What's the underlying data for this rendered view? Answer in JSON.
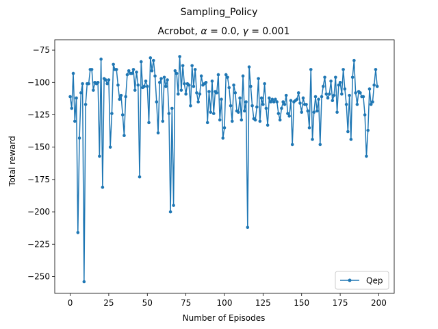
{
  "chart_data": {
    "type": "line",
    "suptitle": "Sampling_Policy",
    "title": "Acrobot, α = 0.0, γ = 0.001",
    "title_prefix": "Acrobot, ",
    "title_alpha_sym": "α",
    "title_alpha_val": " = 0.0, ",
    "title_gamma_sym": "γ",
    "title_gamma_val": " = 0.001",
    "xlabel": "Number of Episodes",
    "ylabel": "Total reward",
    "xlim": [
      -10,
      210
    ],
    "ylim": [
      -263,
      -67
    ],
    "xticks": [
      0,
      25,
      50,
      75,
      100,
      125,
      150,
      175,
      200
    ],
    "xtick_labels": [
      "0",
      "25",
      "50",
      "75",
      "100",
      "125",
      "150",
      "175",
      "200"
    ],
    "yticks": [
      -75,
      -100,
      -125,
      -150,
      -175,
      -200,
      -225,
      -250
    ],
    "ytick_labels": [
      "−75",
      "−100",
      "−125",
      "−150",
      "−175",
      "−200",
      "−225",
      "−250"
    ],
    "grid": false,
    "legend_position": "lower right",
    "series": [
      {
        "name": "Qep",
        "color": "#1f77b4",
        "marker": "circle",
        "x": [
          0,
          1,
          2,
          3,
          4,
          5,
          6,
          7,
          8,
          9,
          10,
          11,
          12,
          13,
          14,
          15,
          16,
          17,
          18,
          19,
          20,
          21,
          22,
          23,
          24,
          25,
          26,
          27,
          28,
          29,
          30,
          31,
          32,
          33,
          34,
          35,
          36,
          37,
          38,
          39,
          40,
          41,
          42,
          43,
          44,
          45,
          46,
          47,
          48,
          49,
          50,
          51,
          52,
          53,
          54,
          55,
          56,
          57,
          58,
          59,
          60,
          61,
          62,
          63,
          64,
          65,
          66,
          67,
          68,
          69,
          70,
          71,
          72,
          73,
          74,
          75,
          76,
          77,
          78,
          79,
          80,
          81,
          82,
          83,
          84,
          85,
          86,
          87,
          88,
          89,
          90,
          91,
          92,
          93,
          94,
          95,
          96,
          97,
          98,
          99,
          100,
          101,
          102,
          103,
          104,
          105,
          106,
          107,
          108,
          109,
          110,
          111,
          112,
          113,
          114,
          115,
          116,
          117,
          118,
          119,
          120,
          121,
          122,
          123,
          124,
          125,
          126,
          127,
          128,
          129,
          130,
          131,
          132,
          133,
          134,
          135,
          136,
          137,
          138,
          139,
          140,
          141,
          142,
          143,
          144,
          145,
          146,
          147,
          148,
          149,
          150,
          151,
          152,
          153,
          154,
          155,
          156,
          157,
          158,
          159,
          160,
          161,
          162,
          163,
          164,
          165,
          166,
          167,
          168,
          169,
          170,
          171,
          172,
          173,
          174,
          175,
          176,
          177,
          178,
          179,
          180,
          181,
          182,
          183,
          184,
          185,
          186,
          187,
          188,
          189,
          190,
          191,
          192,
          193,
          194,
          195,
          196,
          197,
          198,
          199
        ],
        "values": [
          -111,
          -120,
          -93,
          -130,
          -112,
          -216,
          -143,
          -108,
          -101,
          -254,
          -117,
          -101,
          -101,
          -90,
          -90,
          -106,
          -100,
          -101,
          -100,
          -157,
          -82,
          -181,
          -97,
          -98,
          -101,
          -98,
          -150,
          -124,
          -86,
          -90,
          -90,
          -102,
          -113,
          -110,
          -125,
          -141,
          -111,
          -94,
          -91,
          -93,
          -93,
          -90,
          -106,
          -92,
          -102,
          -173,
          -84,
          -104,
          -103,
          -99,
          -103,
          -131,
          -81,
          -91,
          -83,
          -95,
          -115,
          -139,
          -100,
          -97,
          -130,
          -96,
          -103,
          -98,
          -124,
          -200,
          -120,
          -195,
          -91,
          -93,
          -109,
          -80,
          -106,
          -87,
          -101,
          -109,
          -101,
          -102,
          -118,
          -87,
          -103,
          -90,
          -108,
          -115,
          -109,
          -95,
          -102,
          -101,
          -100,
          -131,
          -107,
          -123,
          -99,
          -124,
          -107,
          -108,
          -94,
          -129,
          -113,
          -143,
          -135,
          -94,
          -96,
          -104,
          -118,
          -130,
          -102,
          -108,
          -122,
          -123,
          -112,
          -129,
          -95,
          -122,
          -115,
          -212,
          -88,
          -103,
          -118,
          -128,
          -129,
          -119,
          -97,
          -130,
          -112,
          -117,
          -101,
          -120,
          -133,
          -112,
          -115,
          -113,
          -115,
          -113,
          -115,
          -124,
          -129,
          -120,
          -115,
          -117,
          -110,
          -124,
          -126,
          -114,
          -148,
          -115,
          -114,
          -113,
          -108,
          -116,
          -123,
          -112,
          -117,
          -117,
          -122,
          -135,
          -90,
          -144,
          -123,
          -111,
          -122,
          -113,
          -148,
          -111,
          -103,
          -96,
          -109,
          -112,
          -109,
          -99,
          -114,
          -110,
          -96,
          -123,
          -102,
          -100,
          -109,
          -90,
          -105,
          -117,
          -138,
          -110,
          -144,
          -96,
          -83,
          -108,
          -117,
          -107,
          -108,
          -111,
          -111,
          -125,
          -157,
          -137,
          -105,
          -117,
          -115,
          -102,
          -90,
          -103
        ]
      }
    ]
  }
}
